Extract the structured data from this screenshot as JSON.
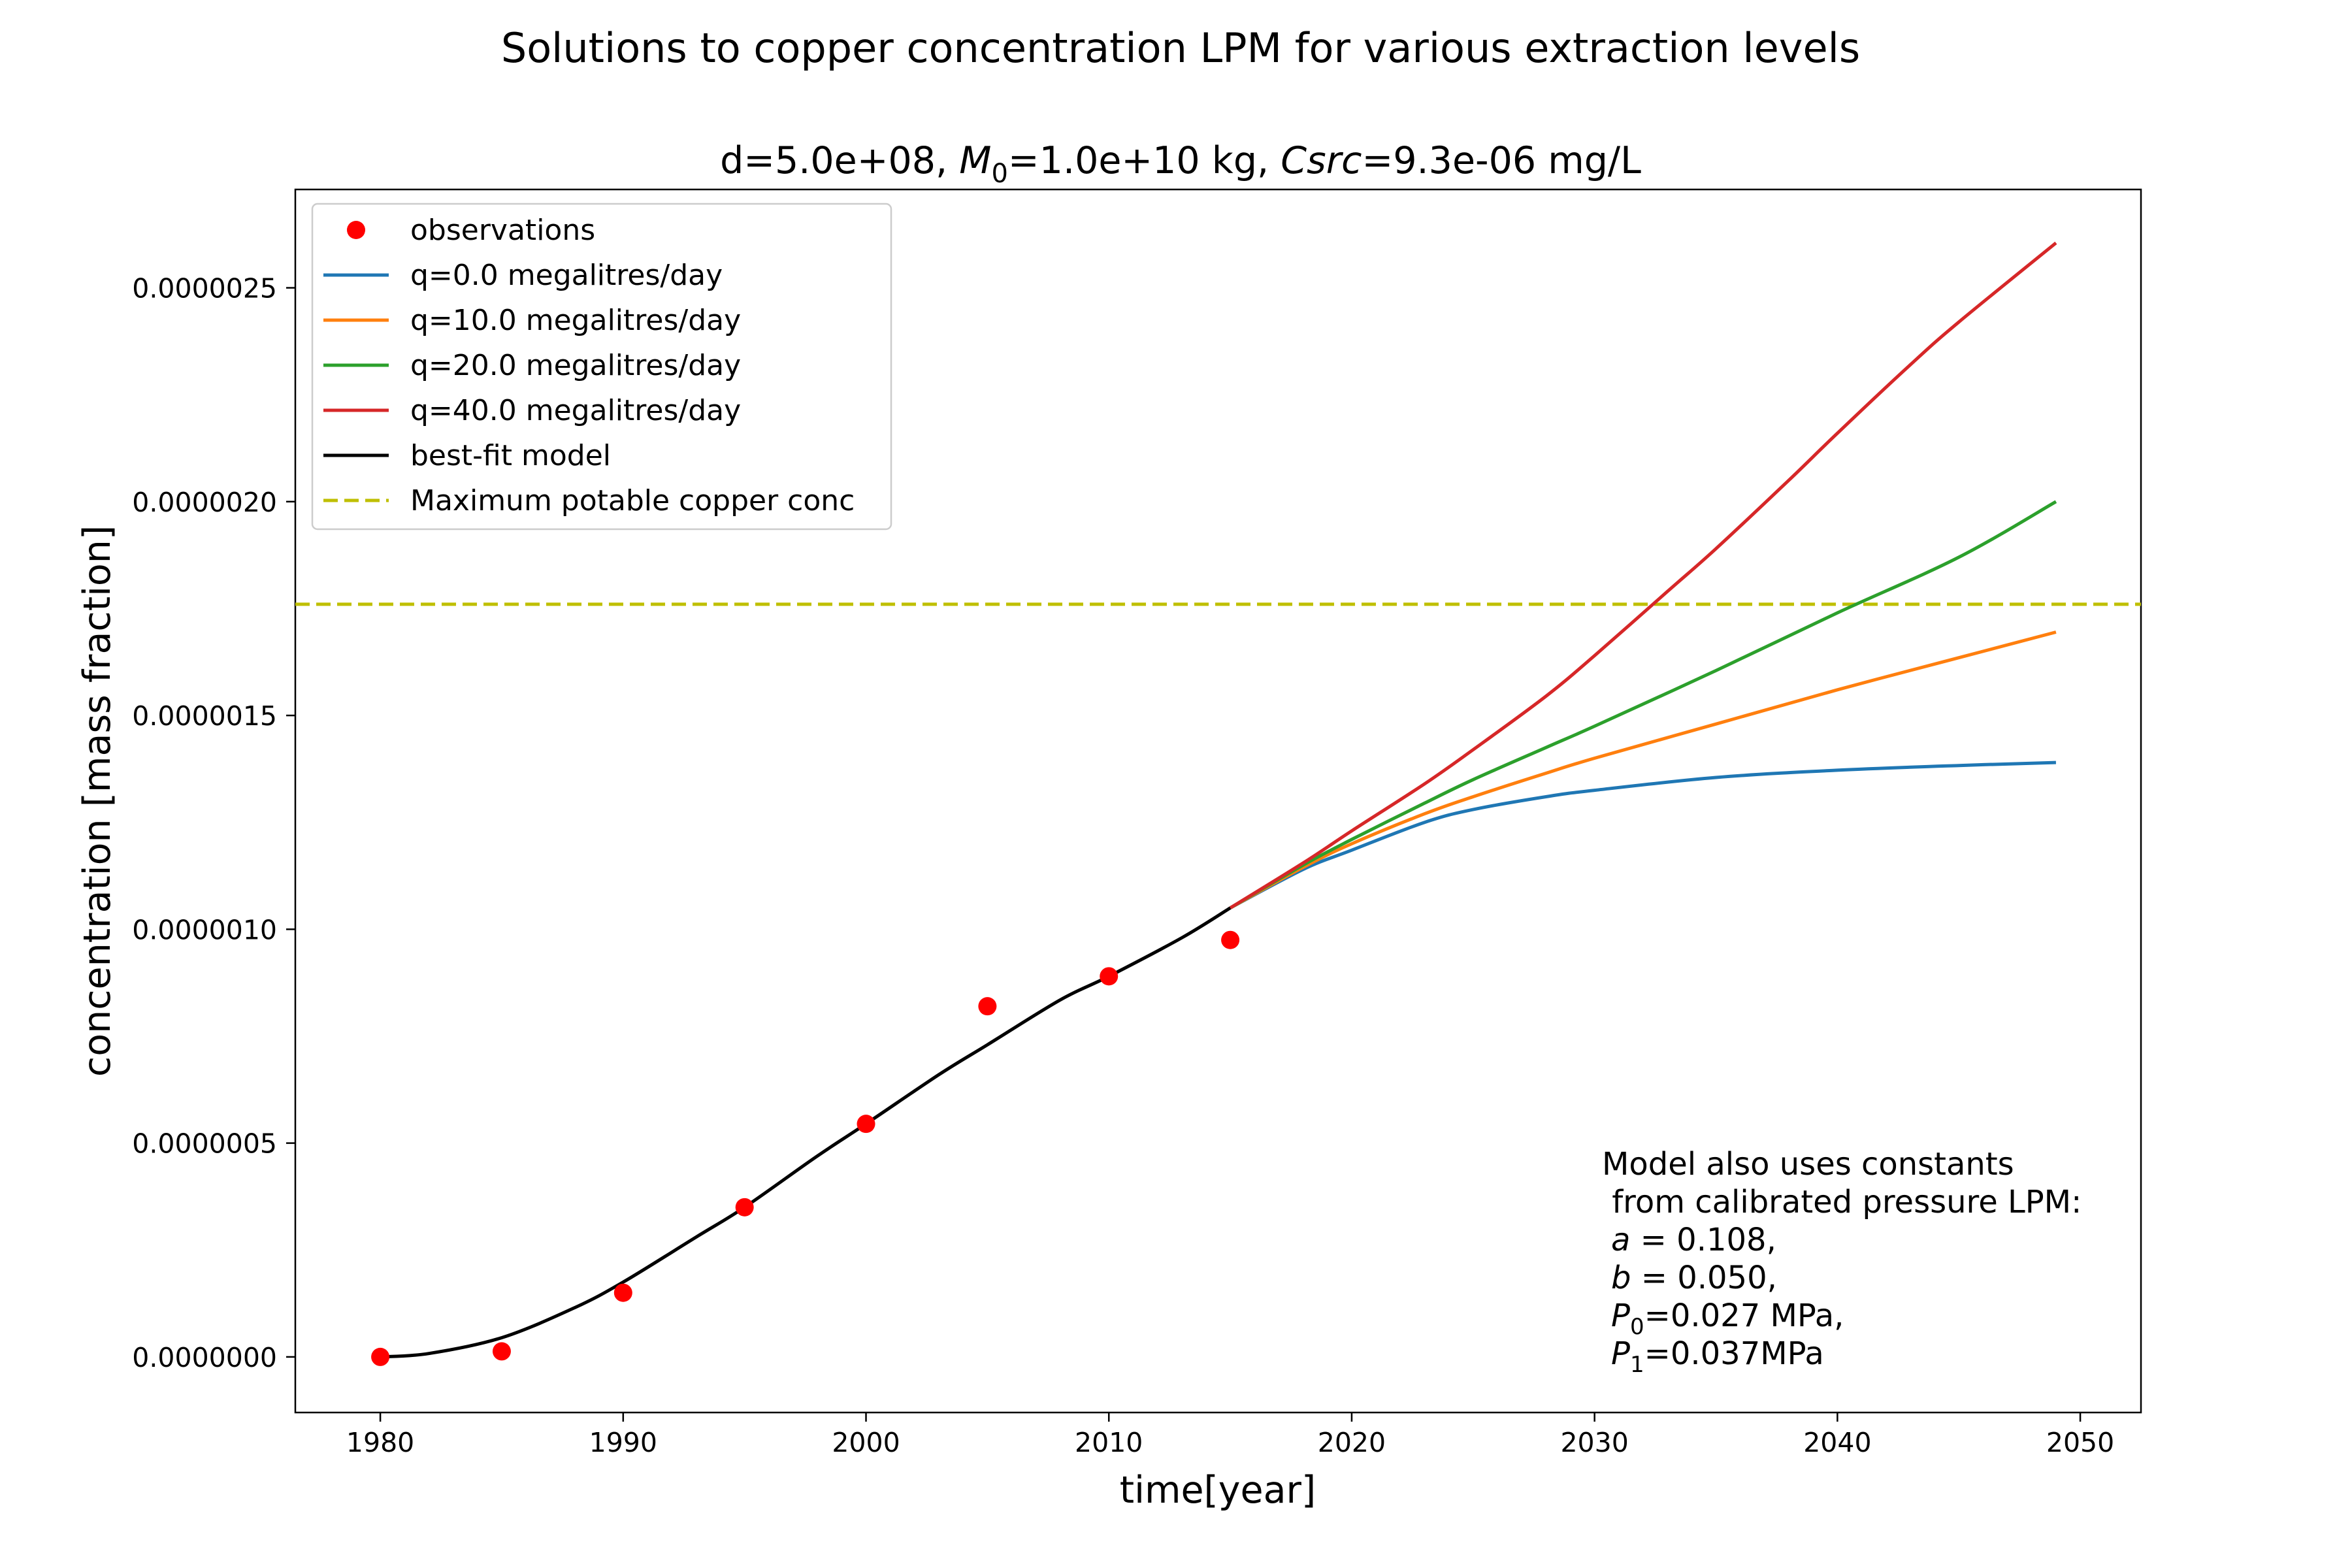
{
  "chart_data": {
    "type": "line",
    "suptitle": "Solutions to copper concentration LPM for various extraction levels",
    "title": {
      "part1": "d=5.0e+08, ",
      "m_sym": "M",
      "m_sub": "0",
      "part2": "=1.0e+10 kg, ",
      "c_sym": "Csrc",
      "part3": "=9.3e-06 mg/L"
    },
    "xlabel": "time[year]",
    "ylabel": "concentration [mass fraction]",
    "xlim": [
      1976.5,
      2052.5
    ],
    "ylim": [
      -1.3e-07,
      2.73e-06
    ],
    "xticks": [
      1980,
      1990,
      2000,
      2010,
      2020,
      2030,
      2040,
      2050
    ],
    "xtick_labels": [
      "1980",
      "1990",
      "2000",
      "2010",
      "2020",
      "2030",
      "2040",
      "2050"
    ],
    "yticks": [
      0,
      5e-07,
      1e-06,
      1.5e-06,
      2e-06,
      2.5e-06
    ],
    "ytick_labels": [
      "0.0000000",
      "0.0000005",
      "0.0000010",
      "0.0000015",
      "0.0000020",
      "0.0000025"
    ],
    "grid": false,
    "legend_position": "top-left",
    "observations": {
      "name": "observations",
      "color": "#ff0000",
      "x": [
        1980,
        1985,
        1990,
        1995,
        2000,
        2005,
        2010,
        2015
      ],
      "y": [
        0.0,
        1.3e-08,
        1.5e-07,
        3.5e-07,
        5.45e-07,
        8.2e-07,
        8.9e-07,
        9.75e-07
      ]
    },
    "best_fit": {
      "name": "best-fit model",
      "color": "#000000",
      "x": [
        1980,
        1982,
        1985,
        1988,
        1990,
        1993,
        1995,
        1998,
        2000,
        2003,
        2005,
        2008,
        2010,
        2013,
        2015
      ],
      "y": [
        0.0,
        8e-09,
        4.5e-08,
        1.15e-07,
        1.75e-07,
        2.8e-07,
        3.5e-07,
        4.7e-07,
        5.45e-07,
        6.6e-07,
        7.3e-07,
        8.35e-07,
        8.9e-07,
        9.8e-07,
        1.05e-06
      ]
    },
    "series": [
      {
        "name": "q=0.0 megalitres/day",
        "color": "#1f77b4",
        "x": [
          2015,
          2018,
          2020,
          2023,
          2025,
          2028,
          2030,
          2035,
          2040,
          2045,
          2049
        ],
        "y": [
          1.05e-06,
          1.14e-06,
          1.185e-06,
          1.25e-06,
          1.28e-06,
          1.31e-06,
          1.325e-06,
          1.355e-06,
          1.372e-06,
          1.383e-06,
          1.39e-06
        ]
      },
      {
        "name": "q=10.0 megalitres/day",
        "color": "#ff7f0e",
        "x": [
          2015,
          2018,
          2020,
          2023,
          2025,
          2028,
          2030,
          2035,
          2040,
          2045,
          2049
        ],
        "y": [
          1.05e-06,
          1.145e-06,
          1.2e-06,
          1.27e-06,
          1.31e-06,
          1.365e-06,
          1.4e-06,
          1.48e-06,
          1.56e-06,
          1.635e-06,
          1.695e-06
        ]
      },
      {
        "name": "q=20.0 megalitres/day",
        "color": "#2ca02c",
        "x": [
          2015,
          2018,
          2020,
          2023,
          2025,
          2028,
          2030,
          2035,
          2040,
          2045,
          2049
        ],
        "y": [
          1.05e-06,
          1.15e-06,
          1.21e-06,
          1.295e-06,
          1.35e-06,
          1.425e-06,
          1.475e-06,
          1.605e-06,
          1.74e-06,
          1.87e-06,
          2e-06
        ]
      },
      {
        "name": "q=40.0 megalitres/day",
        "color": "#d62728",
        "x": [
          2015,
          2018,
          2020,
          2023,
          2025,
          2028,
          2030,
          2033,
          2035,
          2038,
          2040,
          2043,
          2045,
          2049
        ],
        "y": [
          1.05e-06,
          1.155e-06,
          1.23e-06,
          1.34e-06,
          1.42e-06,
          1.545e-06,
          1.64e-06,
          1.79e-06,
          1.89e-06,
          2.05e-06,
          2.16e-06,
          2.32e-06,
          2.42e-06,
          2.605e-06
        ]
      }
    ],
    "threshold": {
      "name": "Maximum potable copper conc",
      "color": "#bfbf00",
      "y": 1.76e-06
    },
    "annotation": {
      "line1": "Model also uses constants",
      "line2": " from calibrated pressure LPM:",
      "a_sym": "a",
      "a_val": " = 0.108,",
      "b_sym": "b",
      "b_val": " = 0.050,",
      "p0_sym": "P",
      "p0_sub": "0",
      "p0_val": "=0.027 MPa,",
      "p1_sym": "P",
      "p1_sub": "1",
      "p1_val": "=0.037MPa"
    }
  }
}
